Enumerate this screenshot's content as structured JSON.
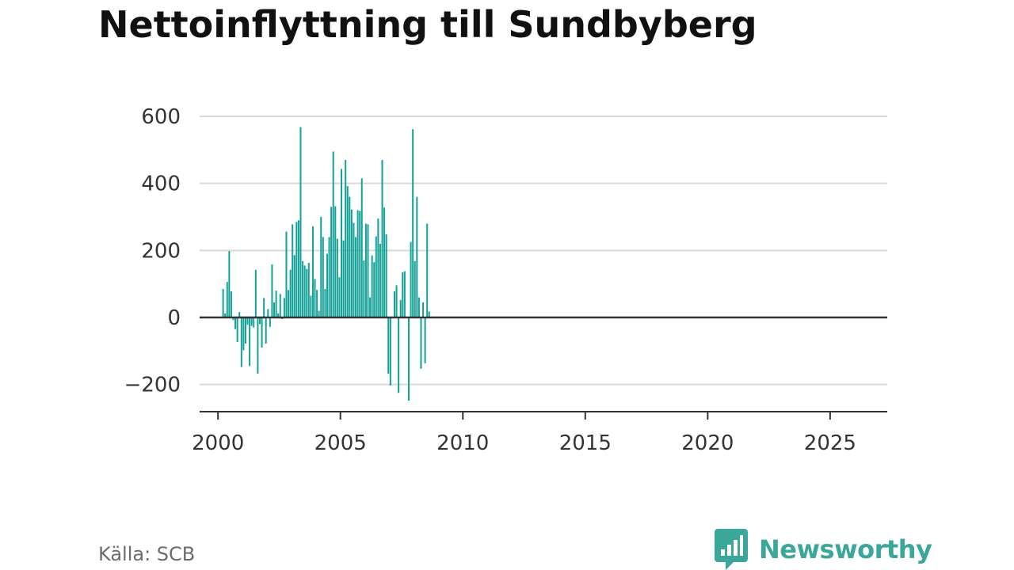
{
  "header": {
    "title": "Nettoinflyttning till Sundbyberg"
  },
  "footer": {
    "source": "Källa: SCB",
    "brand": "Newsworthy"
  },
  "colors": {
    "bar": "#14a198",
    "grid": "#d9d9d9",
    "baseline": "#333333",
    "brand": "#3aa79a"
  },
  "chart_data": {
    "type": "bar",
    "title": "Nettoinflyttning till Sundbyberg",
    "xlabel": "",
    "ylabel": "",
    "frequency": "monthly",
    "start": "2000-01",
    "xlim": [
      "1999-04",
      "2027-05"
    ],
    "ylim": [
      -280,
      640
    ],
    "yticks": [
      -200,
      0,
      200,
      400,
      600
    ],
    "ytick_labels": [
      "−200",
      "0",
      "200",
      "400",
      "600"
    ],
    "xticks": [
      2000,
      2005,
      2010,
      2015,
      2020,
      2025
    ],
    "grid": true,
    "legend": "none",
    "values": [
      null,
      null,
      85,
      12,
      106,
      198,
      78,
      -8,
      -35,
      -73,
      16,
      -148,
      -98,
      -78,
      -22,
      -145,
      -25,
      -30,
      142,
      -168,
      -20,
      -90,
      58,
      -78,
      25,
      -28,
      158,
      45,
      80,
      12,
      70,
      -5,
      58,
      256,
      82,
      142,
      278,
      186,
      285,
      290,
      568,
      168,
      155,
      145,
      163,
      65,
      272,
      115,
      82,
      20,
      300,
      240,
      85,
      190,
      240,
      330,
      495,
      332,
      235,
      120,
      443,
      230,
      470,
      392,
      360,
      322,
      282,
      240,
      320,
      318,
      415,
      170,
      280,
      278,
      60,
      185,
      165,
      242,
      295,
      220,
      470,
      328,
      248,
      -168,
      -203,
      null,
      78,
      96,
      -225,
      52,
      135,
      138,
      null,
      -248,
      225,
      562,
      168,
      360,
      60,
      -153,
      45,
      -137,
      280,
      18
    ]
  }
}
